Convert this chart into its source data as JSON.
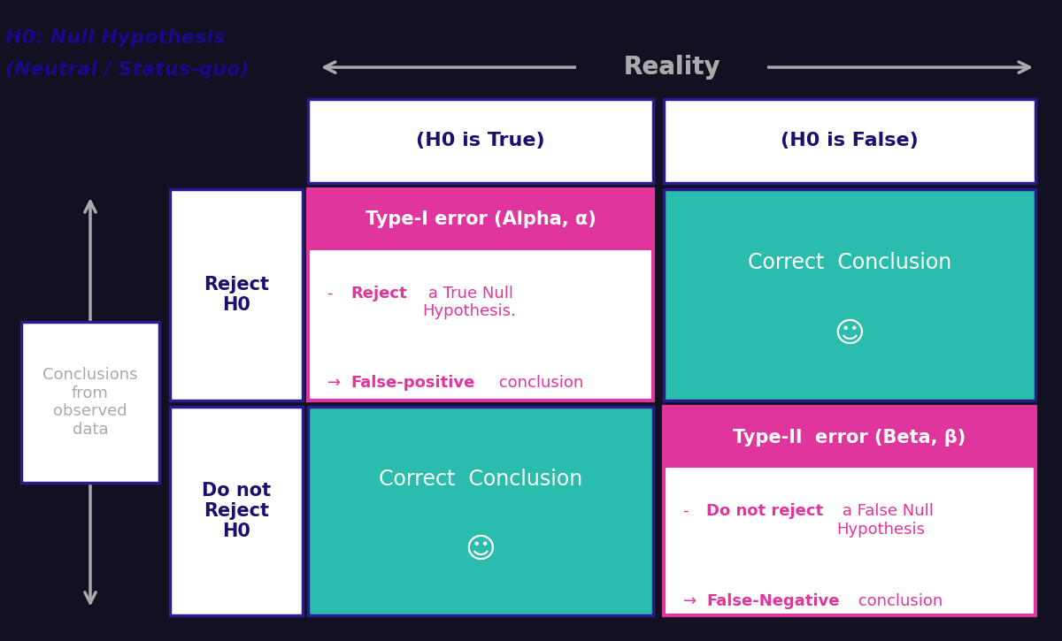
{
  "bg_color": "#111122",
  "title_reality": "Reality",
  "title_h0_true": "(H0 is True)",
  "title_h0_false": "(H0 is False)",
  "label_reject": "Reject\nH0",
  "label_not_reject": "Do not\nReject\nH0",
  "label_conclusions": "Conclusions\nfrom\nobserved\ndata",
  "label_h0_line1": "H0: Null Hypothesis",
  "label_h0_line2": "(Neutral / Status-quo)",
  "type1_header": "Type-I error (Alpha, α)",
  "type2_header": "Type-II  error (Beta, β)",
  "correct1_text": "Correct  Conclusion",
  "correct2_text": "Correct  Conclusion",
  "smiley": "☺",
  "color_teal": "#2abcac",
  "color_pink": "#e0359d",
  "color_white": "#ffffff",
  "color_dark_purple": "#1c0f6e",
  "color_bright_purple": "#1a0a8a",
  "color_gray": "#aaaaaa",
  "color_border_purple": "#2a1a90",
  "color_border_pink": "#e0359d",
  "color_bg_dark": "#111122"
}
